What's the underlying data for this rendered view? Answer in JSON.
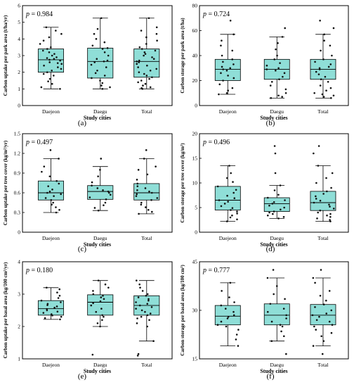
{
  "chart_data": [
    {
      "panel": "(a)",
      "type": "box",
      "p_value": "0.984",
      "ylabel": "Carbon uptake per park area (t/ha/yr)",
      "xlabel": "Study cities",
      "categories": [
        "Daejeon",
        "Daegu",
        "Total"
      ],
      "ylim": [
        0,
        6
      ],
      "yticks": [
        0,
        1,
        2,
        3,
        4,
        5,
        6
      ],
      "tick_labels": [
        "0",
        "1",
        "2",
        "3",
        "4",
        "5",
        "6"
      ],
      "boxes": [
        {
          "min": 1.0,
          "q1": 2.0,
          "median": 2.75,
          "q3": 3.4,
          "max": 4.7
        },
        {
          "min": 1.0,
          "q1": 1.65,
          "median": 2.65,
          "q3": 3.45,
          "max": 5.25
        },
        {
          "min": 1.0,
          "q1": 1.7,
          "median": 2.65,
          "q3": 3.4,
          "max": 5.25
        }
      ],
      "points": [
        [
          1.0,
          1.1,
          1.3,
          1.45,
          1.6,
          1.8,
          1.9,
          2.0,
          2.1,
          2.2,
          2.3,
          2.4,
          2.5,
          2.55,
          2.6,
          2.7,
          2.75,
          2.8,
          2.85,
          2.9,
          3.0,
          3.1,
          3.2,
          3.3,
          3.4,
          3.5,
          3.7,
          3.9,
          4.1,
          4.3,
          4.5,
          4.7
        ],
        [
          1.0,
          1.1,
          1.2,
          1.35,
          1.5,
          1.65,
          1.8,
          1.95,
          2.1,
          2.3,
          2.45,
          2.6,
          2.65,
          2.7,
          2.8,
          3.0,
          3.2,
          3.4,
          3.45,
          3.6,
          3.8,
          4.0,
          4.3,
          4.6,
          5.25
        ],
        [
          1.0,
          1.05,
          1.1,
          1.2,
          1.3,
          1.4,
          1.5,
          1.6,
          1.7,
          1.8,
          1.9,
          2.0,
          2.1,
          2.2,
          2.3,
          2.4,
          2.5,
          2.6,
          2.65,
          2.7,
          2.8,
          2.9,
          3.0,
          3.1,
          3.2,
          3.3,
          3.4,
          3.5,
          3.7,
          3.9,
          4.1,
          4.3,
          4.5,
          4.7,
          5.25
        ]
      ]
    },
    {
      "panel": "(b)",
      "type": "box",
      "p_value": "0.724",
      "ylabel": "Carbon storage per park area (t/ha)",
      "xlabel": "Study cities",
      "categories": [
        "Daejeon",
        "Daegu",
        "Total"
      ],
      "ylim": [
        0,
        80
      ],
      "yticks": [
        0,
        20,
        40,
        60,
        80
      ],
      "tick_labels": [
        "0",
        "20",
        "40",
        "60",
        "80"
      ],
      "boxes": [
        {
          "min": 9,
          "q1": 20,
          "median": 29,
          "q3": 37,
          "max": 57
        },
        {
          "min": 6,
          "q1": 21,
          "median": 29,
          "q3": 37,
          "max": 55
        },
        {
          "min": 6,
          "q1": 21,
          "median": 29,
          "q3": 37,
          "max": 57
        }
      ],
      "points": [
        [
          9,
          10,
          12,
          14,
          17,
          20,
          22,
          24,
          26,
          28,
          29,
          30,
          31,
          33,
          35,
          37,
          40,
          44,
          48,
          52,
          57,
          68
        ],
        [
          6,
          7,
          8,
          10,
          13,
          16,
          19,
          21,
          23,
          26,
          28,
          29,
          30,
          32,
          34,
          37,
          40,
          45,
          50,
          55,
          62
        ],
        [
          6,
          7,
          8,
          9,
          10,
          12,
          14,
          16,
          19,
          21,
          23,
          25,
          27,
          29,
          30,
          31,
          33,
          35,
          37,
          40,
          44,
          48,
          52,
          57,
          62,
          68
        ]
      ]
    },
    {
      "panel": "(c)",
      "type": "box",
      "p_value": "0.497",
      "ylabel": "Carbon uptake per tree cover (kg/m²/yr)",
      "xlabel": "Study cities",
      "categories": [
        "Daejeon",
        "Daegu",
        "Total"
      ],
      "ylim": [
        0,
        1.5
      ],
      "yticks": [
        0,
        0.3,
        0.6,
        0.9,
        1.2,
        1.5
      ],
      "tick_labels": [
        "0",
        "0.3",
        "0.6",
        "0.9",
        "1.2",
        "1.5"
      ],
      "boxes": [
        {
          "min": 0.3,
          "q1": 0.49,
          "median": 0.6,
          "q3": 0.78,
          "max": 1.12
        },
        {
          "min": 0.33,
          "q1": 0.5,
          "median": 0.62,
          "q3": 0.71,
          "max": 1.0
        },
        {
          "min": 0.28,
          "q1": 0.49,
          "median": 0.6,
          "q3": 0.74,
          "max": 1.12
        }
      ],
      "points": [
        [
          0.3,
          0.34,
          0.38,
          0.42,
          0.45,
          0.49,
          0.52,
          0.55,
          0.58,
          0.6,
          0.62,
          0.65,
          0.7,
          0.74,
          0.78,
          0.85,
          0.92,
          1.0,
          1.12,
          1.25
        ],
        [
          0.33,
          0.37,
          0.41,
          0.45,
          0.5,
          0.53,
          0.57,
          0.6,
          0.62,
          0.64,
          0.67,
          0.71,
          0.76,
          0.85,
          0.95,
          1.12
        ],
        [
          0.28,
          0.31,
          0.34,
          0.38,
          0.42,
          0.45,
          0.49,
          0.52,
          0.55,
          0.58,
          0.6,
          0.62,
          0.64,
          0.67,
          0.7,
          0.74,
          0.8,
          0.88,
          0.95,
          1.0,
          1.12,
          1.25
        ]
      ]
    },
    {
      "panel": "(d)",
      "type": "box",
      "p_value": "0.496",
      "ylabel": "Carbon storage per tree cover (kg/m²)",
      "xlabel": "Study cities",
      "categories": [
        "Daejeon",
        "Daegu",
        "Total"
      ],
      "ylim": [
        0,
        20
      ],
      "yticks": [
        0,
        5,
        10,
        15,
        20
      ],
      "tick_labels": [
        "0",
        "5",
        "10",
        "15",
        "20"
      ],
      "boxes": [
        {
          "min": 2.2,
          "q1": 4.5,
          "median": 6.5,
          "q3": 9.3,
          "max": 13.5
        },
        {
          "min": 2.8,
          "q1": 4.2,
          "median": 5.8,
          "q3": 7.0,
          "max": 9.5
        },
        {
          "min": 2.2,
          "q1": 4.4,
          "median": 6.0,
          "q3": 8.3,
          "max": 13.5
        }
      ],
      "points": [
        [
          2.2,
          2.6,
          3.0,
          3.4,
          3.8,
          4.2,
          4.5,
          4.9,
          5.3,
          5.8,
          6.2,
          6.5,
          6.9,
          7.4,
          8.0,
          8.6,
          9.3,
          10.2,
          11.0,
          12.0,
          13.5
        ],
        [
          2.8,
          3.1,
          3.4,
          3.7,
          4.0,
          4.2,
          4.6,
          5.0,
          5.4,
          5.8,
          6.1,
          6.5,
          7.0,
          7.6,
          8.5,
          9.5,
          12.0,
          16.0,
          17.5
        ],
        [
          2.2,
          2.5,
          2.8,
          3.1,
          3.4,
          3.7,
          4.0,
          4.4,
          4.8,
          5.2,
          5.6,
          6.0,
          6.4,
          6.8,
          7.3,
          7.8,
          8.3,
          9.0,
          10.0,
          11.0,
          12.0,
          13.5,
          16.0,
          17.5
        ]
      ]
    },
    {
      "panel": "(e)",
      "type": "box",
      "p_value": "0.180",
      "ylabel": "Carbon uptake per basal area (kg/100 cm²/yr)",
      "xlabel": "Study cities",
      "categories": [
        "Daejeon",
        "Daegu",
        "Total"
      ],
      "ylim": [
        1,
        4
      ],
      "yticks": [
        1,
        2,
        3,
        4
      ],
      "tick_labels": [
        "1",
        "2",
        "3",
        "4"
      ],
      "boxes": [
        {
          "min": 2.22,
          "q1": 2.35,
          "median": 2.55,
          "q3": 2.8,
          "max": 3.2
        },
        {
          "min": 2.0,
          "q1": 2.35,
          "median": 2.75,
          "q3": 2.98,
          "max": 3.42
        },
        {
          "min": 1.55,
          "q1": 2.35,
          "median": 2.65,
          "q3": 2.95,
          "max": 3.42
        }
      ],
      "points": [
        [
          2.22,
          2.26,
          2.3,
          2.34,
          2.38,
          2.42,
          2.46,
          2.5,
          2.54,
          2.58,
          2.62,
          2.66,
          2.7,
          2.75,
          2.8,
          2.88,
          2.95,
          3.05,
          3.15,
          3.2
        ],
        [
          1.13,
          2.0,
          2.1,
          2.2,
          2.3,
          2.35,
          2.45,
          2.55,
          2.65,
          2.72,
          2.78,
          2.85,
          2.9,
          2.95,
          3.0,
          3.1,
          3.2,
          3.3,
          3.42
        ],
        [
          1.1,
          1.15,
          1.55,
          2.0,
          2.1,
          2.2,
          2.25,
          2.3,
          2.35,
          2.4,
          2.45,
          2.5,
          2.55,
          2.6,
          2.65,
          2.7,
          2.75,
          2.8,
          2.85,
          2.9,
          2.95,
          3.0,
          3.1,
          3.2,
          3.3,
          3.42
        ]
      ]
    },
    {
      "panel": "(f)",
      "type": "box",
      "p_value": "0.777",
      "ylabel": "Carbon storage per basal area (kg/100 cm²)",
      "xlabel": "Study cities",
      "categories": [
        "Daejeon",
        "Daegu",
        "Total"
      ],
      "ylim": [
        15,
        45
      ],
      "yticks": [
        15,
        30,
        45
      ],
      "tick_labels": [
        "15",
        "30",
        "45"
      ],
      "boxes": [
        {
          "min": 19,
          "q1": 25.5,
          "median": 28.2,
          "q3": 31.5,
          "max": 38.5
        },
        {
          "min": 20.5,
          "q1": 25.5,
          "median": 28.5,
          "q3": 32.0,
          "max": 40.0
        },
        {
          "min": 19,
          "q1": 25.5,
          "median": 28.5,
          "q3": 31.8,
          "max": 40.0
        }
      ],
      "points": [
        [
          19,
          21,
          22.5,
          24,
          25,
          25.5,
          26.5,
          27.5,
          28,
          28.5,
          29.5,
          30.5,
          31.5,
          32.5,
          34,
          36,
          38.5
        ],
        [
          16.5,
          20.5,
          22,
          23.5,
          25,
          25.5,
          26.5,
          27.5,
          28.5,
          29.5,
          30.5,
          32,
          33.5,
          35,
          37.5,
          40,
          42.5
        ],
        [
          16.5,
          19,
          20.5,
          22,
          23,
          24,
          25,
          25.5,
          26.5,
          27,
          28,
          28.5,
          29,
          30,
          31,
          31.8,
          33,
          34.5,
          36,
          38.5,
          40,
          42.5
        ]
      ]
    }
  ]
}
